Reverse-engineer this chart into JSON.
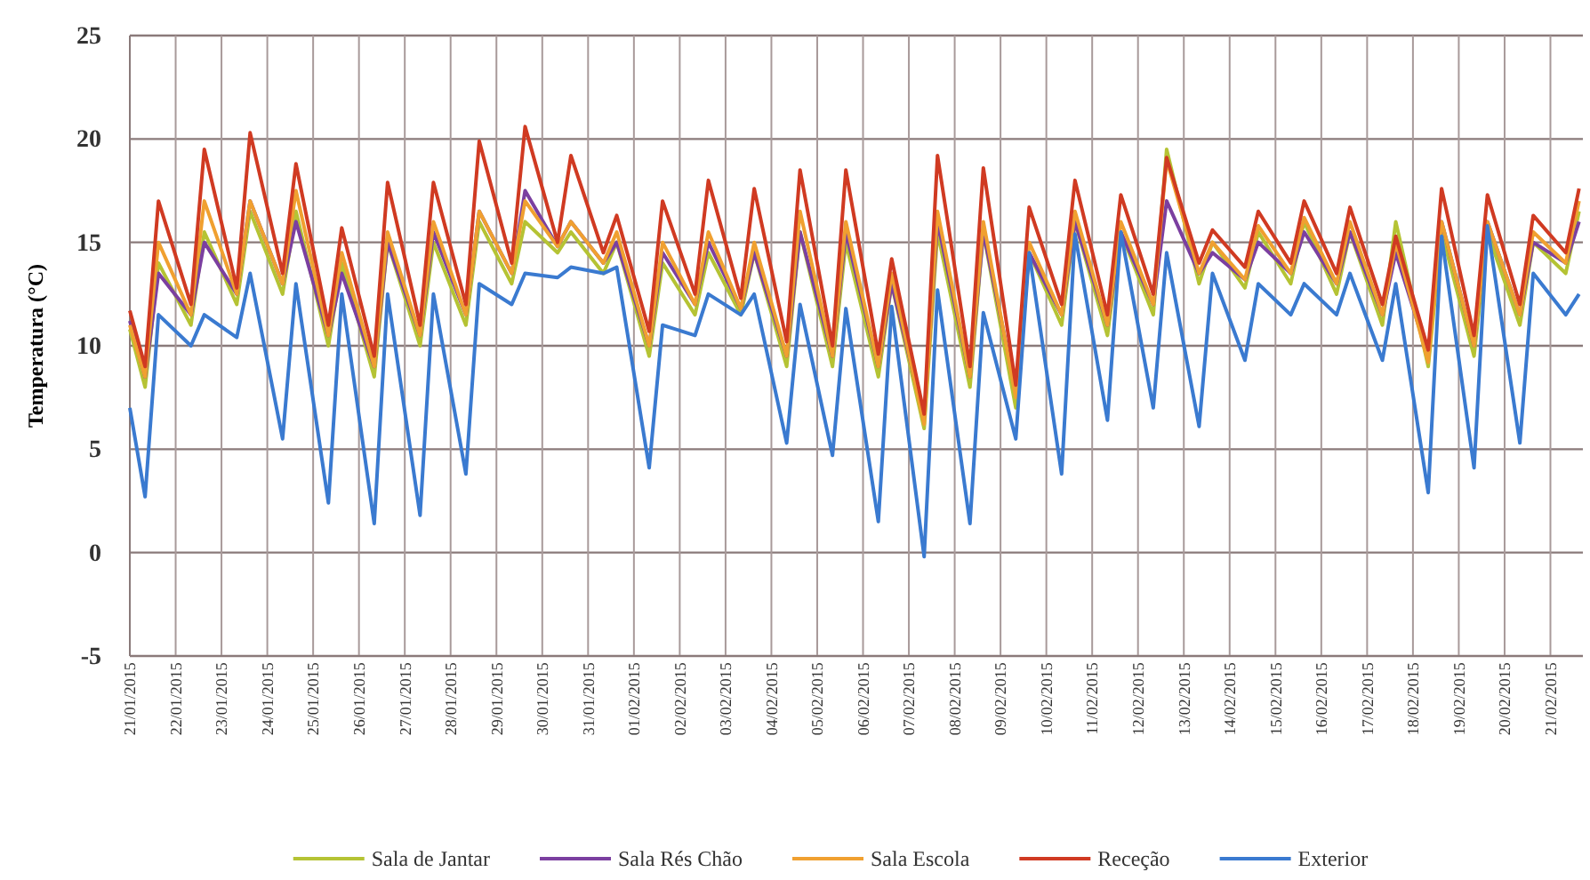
{
  "chart_data": {
    "type": "line",
    "ylabel": "Temperatura (°C)",
    "x": [
      "2015-01-21T00:00",
      "2015-01-21T08:00",
      "2015-01-21T15:00",
      "2015-01-22T08:00",
      "2015-01-22T15:00",
      "2015-01-23T08:00",
      "2015-01-23T15:00",
      "2015-01-24T08:00",
      "2015-01-24T15:00",
      "2015-01-25T08:00",
      "2015-01-25T15:00",
      "2015-01-26T08:00",
      "2015-01-26T15:00",
      "2015-01-27T08:00",
      "2015-01-27T15:00",
      "2015-01-28T08:00",
      "2015-01-28T15:00",
      "2015-01-29T08:00",
      "2015-01-29T15:00",
      "2015-01-30T08:00",
      "2015-01-30T15:00",
      "2015-01-31T08:00",
      "2015-01-31T15:00",
      "2015-02-01T08:00",
      "2015-02-01T15:00",
      "2015-02-02T08:00",
      "2015-02-02T15:00",
      "2015-02-03T08:00",
      "2015-02-03T15:00",
      "2015-02-04T08:00",
      "2015-02-04T15:00",
      "2015-02-05T08:00",
      "2015-02-05T15:00",
      "2015-02-06T08:00",
      "2015-02-06T15:00",
      "2015-02-07T08:00",
      "2015-02-07T15:00",
      "2015-02-08T08:00",
      "2015-02-08T15:00",
      "2015-02-09T08:00",
      "2015-02-09T15:00",
      "2015-02-10T08:00",
      "2015-02-10T15:00",
      "2015-02-11T08:00",
      "2015-02-11T15:00",
      "2015-02-12T08:00",
      "2015-02-12T15:00",
      "2015-02-13T08:00",
      "2015-02-13T15:00",
      "2015-02-14T08:00",
      "2015-02-14T15:00",
      "2015-02-15T08:00",
      "2015-02-15T15:00",
      "2015-02-16T08:00",
      "2015-02-16T15:00",
      "2015-02-17T08:00",
      "2015-02-17T15:00",
      "2015-02-18T08:00",
      "2015-02-18T15:00",
      "2015-02-19T08:00",
      "2015-02-19T15:00",
      "2015-02-20T08:00",
      "2015-02-20T15:00",
      "2015-02-21T08:00",
      "2015-02-21T15:00"
    ],
    "series": [
      {
        "name": "Sala de Jantar",
        "color": "#b5c334",
        "values": [
          10.8,
          8.0,
          14.0,
          11.0,
          15.5,
          12.0,
          16.5,
          12.5,
          16.5,
          10.0,
          14.0,
          8.5,
          15.0,
          10.0,
          15.0,
          11.0,
          16.0,
          13.0,
          16.0,
          14.5,
          15.5,
          13.5,
          15.0,
          9.5,
          14.0,
          11.5,
          14.5,
          11.5,
          14.5,
          9.0,
          15.5,
          9.0,
          15.0,
          8.5,
          13.0,
          6.0,
          15.5,
          8.0,
          15.5,
          7.0,
          14.5,
          11.0,
          16.0,
          10.5,
          15.5,
          11.5,
          19.5,
          13.0,
          15.0,
          12.8,
          15.5,
          13.0,
          16.0,
          12.5,
          15.5,
          11.0,
          16.0,
          9.0,
          15.5,
          9.5,
          15.5,
          11.0,
          15.0,
          13.5,
          16.5
        ]
      },
      {
        "name": "Sala Rés Chão",
        "color": "#7b3fa0",
        "values": [
          11.2,
          8.5,
          13.5,
          11.5,
          15.0,
          12.5,
          17.0,
          13.0,
          16.0,
          10.5,
          13.5,
          9.0,
          15.0,
          10.5,
          15.5,
          11.5,
          16.5,
          13.5,
          17.5,
          14.8,
          16.0,
          14.0,
          15.0,
          10.0,
          14.5,
          12.0,
          15.0,
          11.8,
          14.5,
          9.5,
          15.5,
          9.5,
          15.5,
          9.0,
          13.0,
          6.5,
          16.0,
          8.5,
          15.5,
          7.8,
          14.5,
          11.5,
          16.0,
          11.0,
          15.5,
          12.0,
          17.0,
          13.5,
          14.5,
          13.2,
          15.0,
          13.5,
          15.5,
          13.0,
          15.5,
          11.5,
          14.5,
          9.5,
          16.0,
          10.0,
          16.0,
          11.5,
          15.0,
          14.0,
          16.0
        ]
      },
      {
        "name": "Sala Escola",
        "color": "#f0a030",
        "values": [
          11.0,
          8.5,
          15.0,
          11.5,
          17.0,
          12.5,
          17.0,
          13.0,
          17.5,
          10.5,
          14.5,
          9.0,
          15.5,
          10.5,
          16.0,
          11.5,
          16.5,
          13.5,
          17.0,
          14.8,
          16.0,
          14.0,
          15.5,
          10.0,
          15.0,
          12.0,
          15.5,
          11.8,
          15.0,
          9.5,
          16.5,
          9.5,
          16.0,
          9.0,
          13.5,
          6.2,
          16.5,
          8.5,
          16.0,
          7.5,
          15.0,
          11.5,
          16.5,
          11.0,
          16.0,
          12.0,
          19.0,
          13.5,
          15.0,
          13.2,
          15.8,
          13.5,
          16.2,
          13.0,
          16.0,
          11.5,
          15.0,
          9.2,
          16.0,
          10.0,
          16.0,
          11.5,
          15.5,
          14.0,
          17.0
        ]
      },
      {
        "name": "Receção",
        "color": "#d03a22",
        "values": [
          11.7,
          9.0,
          17.0,
          12.0,
          19.5,
          12.8,
          20.3,
          13.5,
          18.8,
          11.0,
          15.7,
          9.5,
          17.9,
          11.0,
          17.9,
          12.0,
          19.9,
          14.0,
          20.6,
          15.0,
          19.2,
          14.5,
          16.3,
          10.7,
          17.0,
          12.5,
          18.0,
          12.3,
          17.6,
          10.2,
          18.5,
          10.0,
          18.5,
          9.6,
          14.2,
          6.7,
          19.2,
          9.0,
          18.6,
          8.1,
          16.7,
          12.0,
          18.0,
          11.5,
          17.3,
          12.5,
          19.1,
          14.0,
          15.6,
          13.8,
          16.5,
          14.0,
          17.0,
          13.5,
          16.7,
          12.0,
          15.3,
          9.8,
          17.6,
          10.5,
          17.3,
          12.0,
          16.3,
          14.5,
          17.6
        ]
      },
      {
        "name": "Exterior",
        "color": "#3a7ad0",
        "values": [
          7.0,
          2.7,
          11.5,
          10.0,
          11.5,
          10.4,
          13.5,
          5.5,
          13.0,
          2.4,
          12.5,
          1.4,
          12.5,
          1.8,
          12.5,
          3.8,
          13.0,
          12.0,
          13.5,
          13.3,
          13.8,
          13.5,
          13.8,
          4.1,
          11.0,
          10.5,
          12.5,
          11.5,
          12.5,
          5.3,
          12.0,
          4.7,
          11.8,
          1.5,
          11.9,
          -0.2,
          12.7,
          1.4,
          11.6,
          5.5,
          14.5,
          3.8,
          15.4,
          6.4,
          15.5,
          7.0,
          14.5,
          6.1,
          13.5,
          9.3,
          13.0,
          11.5,
          13.0,
          11.5,
          13.5,
          9.3,
          13.0,
          2.9,
          15.3,
          4.1,
          15.8,
          5.3,
          13.5,
          11.5,
          12.5
        ]
      }
    ],
    "ylim": [
      -5,
      25
    ],
    "yticks": [
      -5,
      0,
      5,
      10,
      15,
      20,
      25
    ],
    "xlim": [
      "2015-01-21T00:00",
      "2015-02-21T17:00"
    ],
    "xticks": [
      {
        "value": "2015-01-21",
        "label": "21/01/2015"
      },
      {
        "value": "2015-01-22",
        "label": "22/01/2015"
      },
      {
        "value": "2015-01-23",
        "label": "23/01/2015"
      },
      {
        "value": "2015-01-24",
        "label": "24/01/2015"
      },
      {
        "value": "2015-01-25",
        "label": "25/01/2015"
      },
      {
        "value": "2015-01-26",
        "label": "26/01/2015"
      },
      {
        "value": "2015-01-27",
        "label": "27/01/2015"
      },
      {
        "value": "2015-01-28",
        "label": "28/01/2015"
      },
      {
        "value": "2015-01-29",
        "label": "29/01/2015"
      },
      {
        "value": "2015-01-30",
        "label": "30/01/2015"
      },
      {
        "value": "2015-01-31",
        "label": "31/01/2015"
      },
      {
        "value": "2015-02-01",
        "label": "01/02/2015"
      },
      {
        "value": "2015-02-02",
        "label": "02/02/2015"
      },
      {
        "value": "2015-02-03",
        "label": "03/02/2015"
      },
      {
        "value": "2015-02-04",
        "label": "04/02/2015"
      },
      {
        "value": "2015-02-05",
        "label": "05/02/2015"
      },
      {
        "value": "2015-02-06",
        "label": "06/02/2015"
      },
      {
        "value": "2015-02-07",
        "label": "07/02/2015"
      },
      {
        "value": "2015-02-08",
        "label": "08/02/2015"
      },
      {
        "value": "2015-02-09",
        "label": "09/02/2015"
      },
      {
        "value": "2015-02-10",
        "label": "10/02/2015"
      },
      {
        "value": "2015-02-11",
        "label": "11/02/2015"
      },
      {
        "value": "2015-02-12",
        "label": "12/02/2015"
      },
      {
        "value": "2015-02-13",
        "label": "13/02/2015"
      },
      {
        "value": "2015-02-14",
        "label": "14/02/2015"
      },
      {
        "value": "2015-02-15",
        "label": "15/02/2015"
      },
      {
        "value": "2015-02-16",
        "label": "16/02/2015"
      },
      {
        "value": "2015-02-17",
        "label": "17/02/2015"
      },
      {
        "value": "2015-02-18",
        "label": "18/02/2015"
      },
      {
        "value": "2015-02-19",
        "label": "19/02/2015"
      },
      {
        "value": "2015-02-20",
        "label": "20/02/2015"
      },
      {
        "value": "2015-02-21",
        "label": "21/02/2015"
      }
    ],
    "grid": true,
    "legend": "bottom",
    "marker": "none",
    "line_style": "solid"
  }
}
